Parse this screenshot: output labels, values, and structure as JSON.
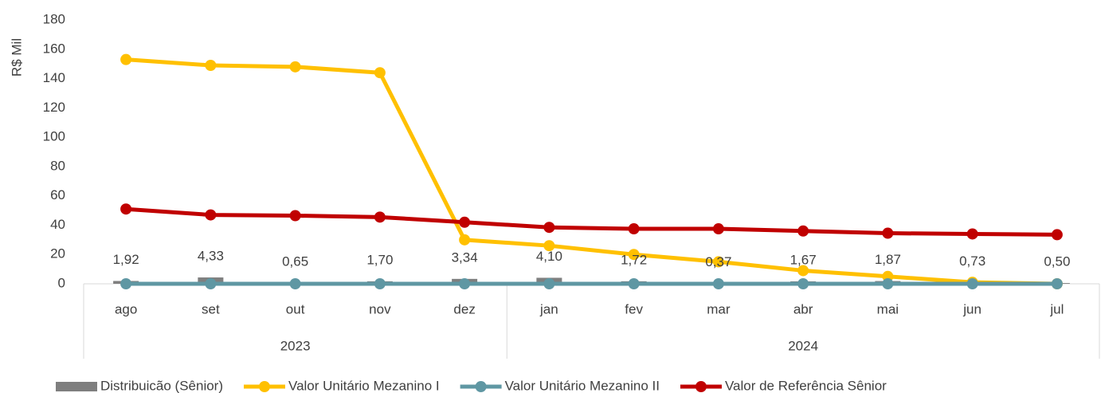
{
  "chart_data": {
    "type": "combo",
    "y_label": "R$ Mil",
    "categories": [
      "ago",
      "set",
      "out",
      "nov",
      "dez",
      "jan",
      "fev",
      "mar",
      "abr",
      "mai",
      "jun",
      "jul"
    ],
    "category_groups": [
      {
        "label": "2023",
        "size": 5
      },
      {
        "label": "2024",
        "size": 7
      }
    ],
    "ylim": [
      0,
      180
    ],
    "yticks": [
      0,
      20,
      40,
      60,
      80,
      100,
      120,
      140,
      160,
      180
    ],
    "grid": false,
    "legend": "bottom",
    "series": [
      {
        "name": "Distribuicão (Sênior)",
        "type": "bar",
        "color": "#7f7f7f",
        "values": [
          1.92,
          4.33,
          0.65,
          1.7,
          3.34,
          4.1,
          1.72,
          0.37,
          1.67,
          1.87,
          0.73,
          0.5
        ],
        "value_labels": [
          "1,92",
          "4,33",
          "0,65",
          "1,70",
          "3,34",
          "4,10",
          "1,72",
          "0,37",
          "1,67",
          "1,87",
          "0,73",
          "0,50"
        ]
      },
      {
        "name": "Valor Unitário Mezanino I",
        "type": "line",
        "color": "#ffc000",
        "values": [
          153,
          149,
          148,
          144,
          30,
          26,
          20,
          15,
          9,
          5,
          1,
          0
        ]
      },
      {
        "name": "Valor Unitário Mezanino II",
        "type": "line",
        "color": "#5f97a3",
        "values": [
          0,
          0,
          0,
          0,
          0,
          0,
          0,
          0,
          0,
          0,
          0,
          0
        ]
      },
      {
        "name": "Valor de Referência Sênior",
        "type": "line",
        "color": "#c00000",
        "values": [
          51,
          47,
          46.5,
          45.5,
          42,
          38.5,
          37.5,
          37.5,
          36,
          34.5,
          34,
          33.5
        ]
      }
    ]
  }
}
